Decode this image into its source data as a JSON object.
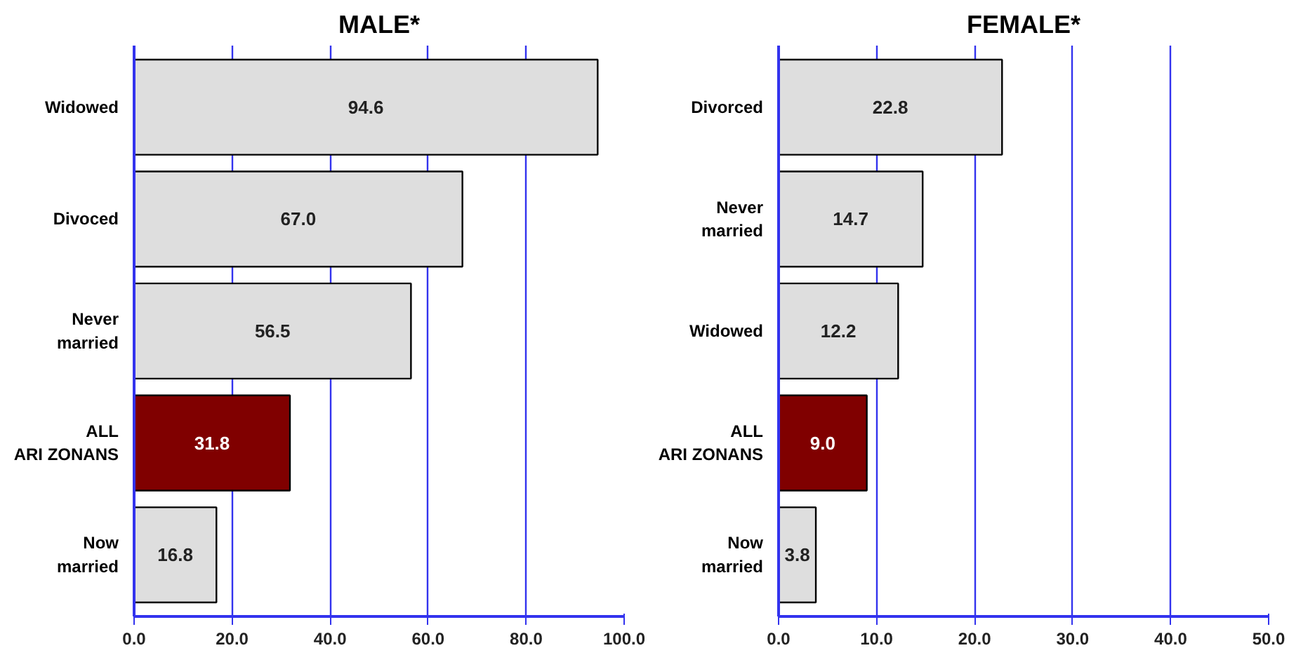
{
  "chart_data": [
    {
      "type": "bar",
      "orientation": "horizontal",
      "title": "MALE*",
      "categories": [
        "Widowed",
        "Divoced",
        "Never\nmarried",
        "ALL\nARI ZONANS",
        "Now\nmarried"
      ],
      "values": [
        94.6,
        67.0,
        56.5,
        31.8,
        16.8
      ],
      "colors": [
        "#dedede",
        "#dedede",
        "#dedede",
        "#800000",
        "#dedede"
      ],
      "value_labels": [
        "94.6",
        "67.0",
        "56.5",
        "31.8",
        "16.8"
      ],
      "grid": "x",
      "xlim": [
        0,
        100
      ],
      "xticks": [
        {
          "value": 0,
          "label": "0.0"
        },
        {
          "value": 20,
          "label": "20.0"
        },
        {
          "value": 40,
          "label": "40.0"
        },
        {
          "value": 60,
          "label": "60.0"
        },
        {
          "value": 80,
          "label": "80.0"
        },
        {
          "value": 100,
          "label": "100.0"
        }
      ]
    },
    {
      "type": "bar",
      "orientation": "horizontal",
      "title": "FEMALE*",
      "categories": [
        "Divorced",
        "Never\nmarried",
        "Widowed",
        "ALL\nARI ZONANS",
        "Now\nmarried"
      ],
      "values": [
        22.8,
        14.7,
        12.2,
        9.0,
        3.8
      ],
      "colors": [
        "#dedede",
        "#dedede",
        "#dedede",
        "#800000",
        "#dedede"
      ],
      "value_labels": [
        "22.8",
        "14.7",
        "12.2",
        "9.0",
        "3.8"
      ],
      "grid": "x",
      "xlim": [
        0,
        50
      ],
      "xticks": [
        {
          "value": 0,
          "label": "0.0"
        },
        {
          "value": 10,
          "label": "10.0"
        },
        {
          "value": 20,
          "label": "20.0"
        },
        {
          "value": 30,
          "label": "30.0"
        },
        {
          "value": 40,
          "label": "40.0"
        },
        {
          "value": 50,
          "label": "50.0"
        }
      ]
    }
  ]
}
